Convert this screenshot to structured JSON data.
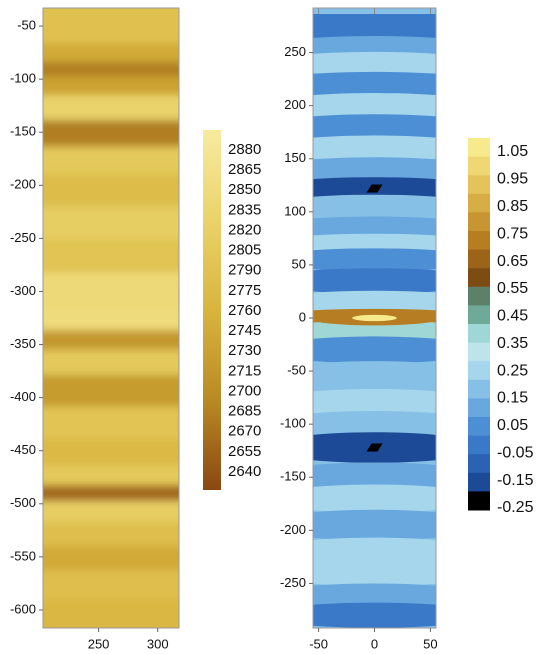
{
  "chart_data": [
    {
      "type": "heatmap",
      "title": "",
      "xlabel": "",
      "ylabel": "",
      "x_ticks": [
        250,
        300
      ],
      "y_ticks": [
        -50,
        -100,
        -150,
        -200,
        -250,
        -300,
        -350,
        -400,
        -450,
        -500,
        -550,
        -600
      ],
      "xlim": [
        203,
        318
      ],
      "ylim": [
        -617,
        -33
      ],
      "colorbar": {
        "ticks": [
          2880,
          2865,
          2850,
          2835,
          2820,
          2805,
          2790,
          2775,
          2760,
          2745,
          2730,
          2715,
          2700,
          2685,
          2670,
          2655,
          2640
        ],
        "range": [
          2640,
          2880
        ],
        "colors": [
          "#f7eba0",
          "#ead36a",
          "#d9b43e",
          "#b98a24",
          "#8a4712"
        ]
      },
      "bands": [
        {
          "y": -55,
          "value": 2785
        },
        {
          "y": -78,
          "value": 2745
        },
        {
          "y": -90,
          "value": 2690
        },
        {
          "y": -105,
          "value": 2735
        },
        {
          "y": -125,
          "value": 2820
        },
        {
          "y": -152,
          "value": 2690
        },
        {
          "y": -175,
          "value": 2800
        },
        {
          "y": -205,
          "value": 2775
        },
        {
          "y": -235,
          "value": 2810
        },
        {
          "y": -265,
          "value": 2790
        },
        {
          "y": -300,
          "value": 2835
        },
        {
          "y": -328,
          "value": 2840
        },
        {
          "y": -345,
          "value": 2720
        },
        {
          "y": -365,
          "value": 2800
        },
        {
          "y": -392,
          "value": 2725
        },
        {
          "y": -425,
          "value": 2790
        },
        {
          "y": -452,
          "value": 2770
        },
        {
          "y": -475,
          "value": 2800
        },
        {
          "y": -490,
          "value": 2670
        },
        {
          "y": -505,
          "value": 2810
        },
        {
          "y": -530,
          "value": 2780
        },
        {
          "y": -550,
          "value": 2745
        },
        {
          "y": -575,
          "value": 2780
        },
        {
          "y": -605,
          "value": 2765
        }
      ]
    },
    {
      "type": "heatmap",
      "title": "",
      "xlabel": "",
      "ylabel": "",
      "x_ticks": [
        -50,
        0,
        50
      ],
      "y_ticks": [
        250,
        200,
        150,
        100,
        50,
        0,
        -50,
        -100,
        -150,
        -200,
        -250
      ],
      "xlim": [
        -55,
        55
      ],
      "ylim": [
        -292,
        292
      ],
      "colorbar": {
        "ticks": [
          1.05,
          0.95,
          0.85,
          0.75,
          0.65,
          0.55,
          0.45,
          0.35,
          0.25,
          0.15,
          0.05,
          -0.05,
          -0.15,
          -0.25
        ],
        "bins": [
          {
            "value": 1.05,
            "color": "#f7ea8c"
          },
          {
            "value": 0.95,
            "color": "#efd774"
          },
          {
            "value": 0.85,
            "color": "#e5c35c"
          },
          {
            "value": 0.75,
            "color": "#d7ad45"
          },
          {
            "value": 0.65,
            "color": "#c79532"
          },
          {
            "value": 0.55,
            "color": "#b67d22"
          },
          {
            "value": 0.45,
            "color": "#9c6418"
          },
          {
            "value": 0.35,
            "color": "#7d4c12"
          },
          {
            "value": 0.3,
            "color": "#5c8068"
          },
          {
            "value": 0.25,
            "color": "#6faa98"
          },
          {
            "value": 0.2,
            "color": "#9fd7d6"
          },
          {
            "value": 0.15,
            "color": "#bce4ea"
          },
          {
            "value": 0.1,
            "color": "#a6d6ec"
          },
          {
            "value": 0.05,
            "color": "#86c0e6"
          },
          {
            "value": 0.0,
            "color": "#68a8df"
          },
          {
            "value": -0.05,
            "color": "#4d8fd4"
          },
          {
            "value": -0.1,
            "color": "#3a78c8"
          },
          {
            "value": -0.15,
            "color": "#2c62b4"
          },
          {
            "value": -0.2,
            "color": "#1d4a96"
          },
          {
            "value": -0.25,
            "color": "#000000"
          }
        ]
      },
      "bands": [
        {
          "y": 275,
          "value": -0.12
        },
        {
          "y": 255,
          "value": 0.02
        },
        {
          "y": 240,
          "value": 0.12
        },
        {
          "y": 220,
          "value": -0.03
        },
        {
          "y": 200,
          "value": 0.1
        },
        {
          "y": 180,
          "value": -0.05
        },
        {
          "y": 160,
          "value": 0.12
        },
        {
          "y": 140,
          "value": 0.02
        },
        {
          "y": 122,
          "value": -0.2
        },
        {
          "y": 105,
          "value": 0.05
        },
        {
          "y": 85,
          "value": -0.02
        },
        {
          "y": 70,
          "value": 0.08
        },
        {
          "y": 55,
          "value": -0.06
        },
        {
          "y": 35,
          "value": -0.08
        },
        {
          "y": 15,
          "value": 0.12
        },
        {
          "y": 0,
          "value": 0.6
        },
        {
          "y": -12,
          "value": 0.18
        },
        {
          "y": -30,
          "value": -0.05
        },
        {
          "y": -55,
          "value": 0.05
        },
        {
          "y": -80,
          "value": 0.12
        },
        {
          "y": -100,
          "value": 0.05
        },
        {
          "y": -122,
          "value": -0.18
        },
        {
          "y": -150,
          "value": 0.02
        },
        {
          "y": -170,
          "value": 0.1
        },
        {
          "y": -195,
          "value": 0.0
        },
        {
          "y": -220,
          "value": 0.08
        },
        {
          "y": -240,
          "value": 0.12
        },
        {
          "y": -262,
          "value": 0.0
        },
        {
          "y": -280,
          "value": -0.12
        }
      ],
      "features": [
        {
          "kind": "ellipse",
          "x": 0,
          "y": 0,
          "rx": 60,
          "ry": 7,
          "value": 0.6
        },
        {
          "kind": "ellipse",
          "x": 0,
          "y": 0,
          "rx": 20,
          "ry": 3,
          "value": 1.05
        },
        {
          "kind": "blob",
          "x": 0,
          "y": 122,
          "value": -0.25
        },
        {
          "kind": "blob",
          "x": 0,
          "y": -122,
          "value": -0.25
        }
      ]
    }
  ]
}
